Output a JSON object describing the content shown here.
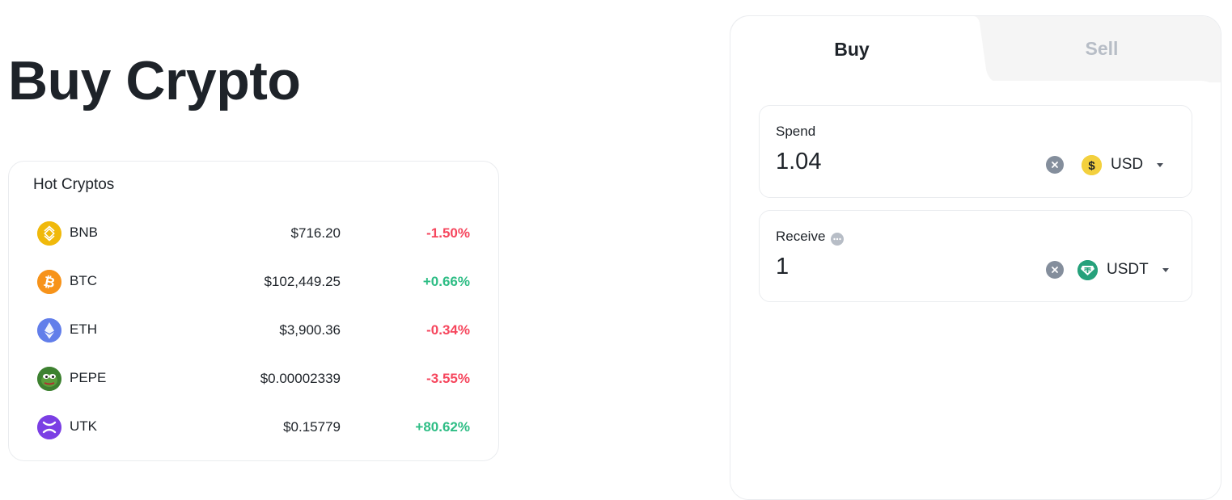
{
  "page": {
    "title": "Buy Crypto"
  },
  "hot_cryptos": {
    "title": "Hot Cryptos",
    "items": [
      {
        "symbol": "BNB",
        "price": "$716.20",
        "change": "-1.50%",
        "direction": "down",
        "icon": "bnb-icon",
        "color": "#f0b90b"
      },
      {
        "symbol": "BTC",
        "price": "$102,449.25",
        "change": "+0.66%",
        "direction": "up",
        "icon": "btc-icon",
        "color": "#f7931a"
      },
      {
        "symbol": "ETH",
        "price": "$3,900.36",
        "change": "-0.34%",
        "direction": "down",
        "icon": "eth-icon",
        "color": "#627eea"
      },
      {
        "symbol": "PEPE",
        "price": "$0.00002339",
        "change": "-3.55%",
        "direction": "down",
        "icon": "pepe-icon",
        "color": "#3d8130"
      },
      {
        "symbol": "UTK",
        "price": "$0.15779",
        "change": "+80.62%",
        "direction": "up",
        "icon": "utk-icon",
        "color": "#7b3fe4"
      }
    ]
  },
  "trade": {
    "tabs": {
      "buy": "Buy",
      "sell": "Sell",
      "active": "buy"
    },
    "spend": {
      "label": "Spend",
      "value": "1.04",
      "currency": "USD",
      "currency_icon": "dollar-coin-icon",
      "currency_color": "#f0b90b"
    },
    "receive": {
      "label": "Receive",
      "value": "1",
      "currency": "USDT",
      "currency_icon": "tether-icon",
      "currency_color": "#26a17b"
    }
  },
  "colors": {
    "negative": "#f6465d",
    "positive": "#2ebd85",
    "text": "#1e2329",
    "muted": "#b7bdc6"
  }
}
